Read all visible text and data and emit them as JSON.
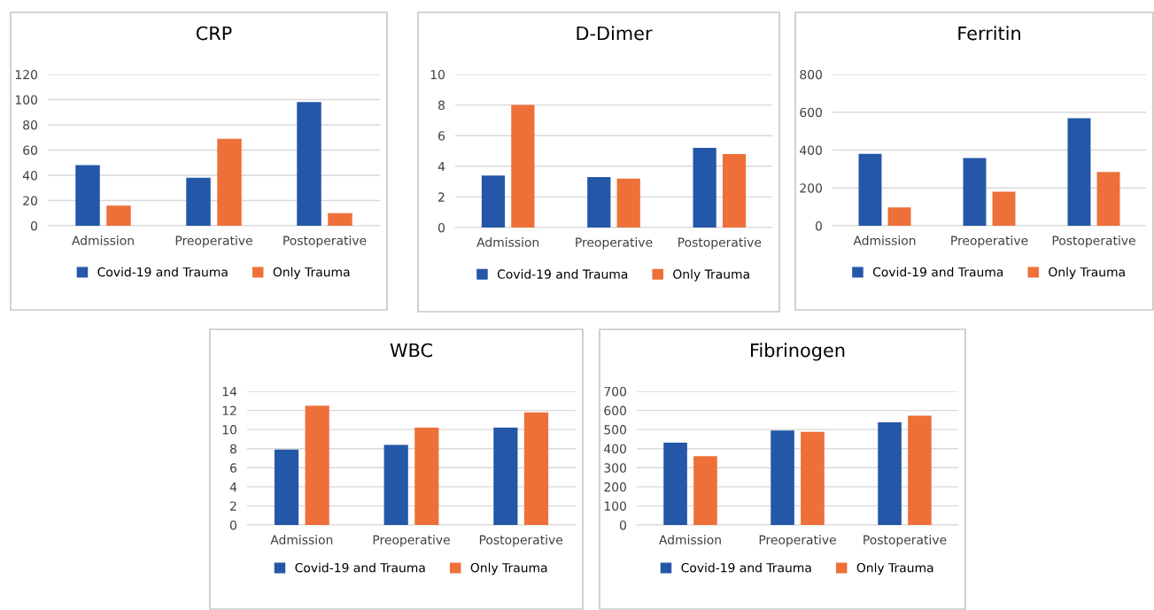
{
  "chart_data": [
    {
      "type": "bar",
      "title": "CRP",
      "categories": [
        "Admission",
        "Preoperative",
        "Postoperative"
      ],
      "series": [
        {
          "name": "Covid-19 and Trauma",
          "color": "#2457a8",
          "values": [
            48,
            38,
            98
          ]
        },
        {
          "name": "Only Trauma",
          "color": "#ee7039",
          "values": [
            16,
            69,
            10
          ]
        }
      ],
      "ylim": [
        0,
        120
      ],
      "yticks": [
        0,
        20,
        40,
        60,
        80,
        100,
        120
      ],
      "grid": "y",
      "legend": "bottom"
    },
    {
      "type": "bar",
      "title": "D-Dimer",
      "categories": [
        "Admission",
        "Preoperative",
        "Postoperative"
      ],
      "series": [
        {
          "name": "Covid-19 and Trauma",
          "color": "#2457a8",
          "values": [
            3.4,
            3.3,
            5.2
          ]
        },
        {
          "name": "Only Trauma",
          "color": "#ee7039",
          "values": [
            8.0,
            3.2,
            4.8
          ]
        }
      ],
      "ylim": [
        0,
        10
      ],
      "yticks": [
        0,
        2,
        4,
        6,
        8,
        10
      ],
      "grid": "y",
      "legend": "bottom"
    },
    {
      "type": "bar",
      "title": "Ferritin",
      "categories": [
        "Admission",
        "Preoperative",
        "Postoperative"
      ],
      "series": [
        {
          "name": "Covid-19 and Trauma",
          "color": "#2457a8",
          "values": [
            380,
            358,
            568
          ]
        },
        {
          "name": "Only Trauma",
          "color": "#ee7039",
          "values": [
            97,
            180,
            284
          ]
        }
      ],
      "ylim": [
        0,
        800
      ],
      "yticks": [
        0,
        200,
        400,
        600,
        800
      ],
      "grid": "y",
      "legend": "bottom"
    },
    {
      "type": "bar",
      "title": "WBC",
      "categories": [
        "Admission",
        "Preoperative",
        "Postoperative"
      ],
      "series": [
        {
          "name": "Covid-19 and Trauma",
          "color": "#2457a8",
          "values": [
            7.9,
            8.4,
            10.2
          ]
        },
        {
          "name": "Only Trauma",
          "color": "#ee7039",
          "values": [
            12.5,
            10.2,
            11.8
          ]
        }
      ],
      "ylim": [
        0,
        14
      ],
      "yticks": [
        0,
        2,
        4,
        6,
        8,
        10,
        12,
        14
      ],
      "grid": "y",
      "legend": "bottom"
    },
    {
      "type": "bar",
      "title": "Fibrinogen",
      "categories": [
        "Admission",
        "Preoperative",
        "Postoperative"
      ],
      "series": [
        {
          "name": "Covid-19 and Trauma",
          "color": "#2457a8",
          "values": [
            431,
            495,
            538
          ]
        },
        {
          "name": "Only Trauma",
          "color": "#ee7039",
          "values": [
            360,
            488,
            572
          ]
        }
      ],
      "ylim": [
        0,
        700
      ],
      "yticks": [
        0,
        100,
        200,
        300,
        400,
        500,
        600,
        700
      ],
      "grid": "y",
      "legend": "bottom"
    }
  ]
}
